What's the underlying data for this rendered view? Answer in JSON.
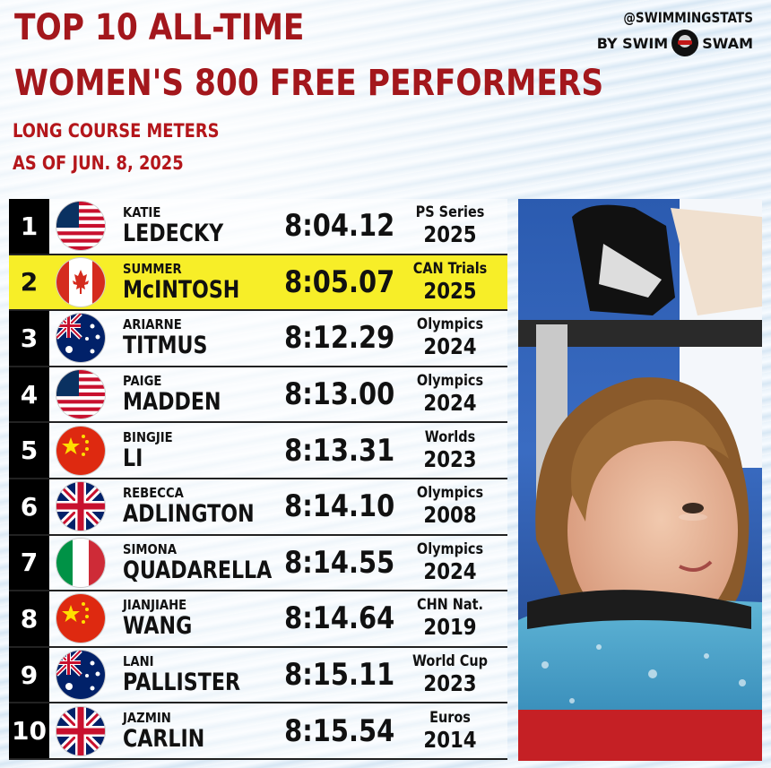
{
  "header": {
    "title_line1": "TOP 10 ALL-TIME",
    "title_line2": "WOMEN'S 800 FREE PERFORMERS",
    "subtitle_line1": "LONG COURSE METERS",
    "subtitle_line2": "AS OF JUN. 8, 2025"
  },
  "brand": {
    "handle": "@SWIMMINGSTATS",
    "by": "BY SWIM",
    "swam": "SWAM",
    "icon": "swimswam-logo-icon"
  },
  "colors": {
    "title_red": "#a3171c",
    "highlight_yellow": "#f7ee28",
    "rank_black": "#000000"
  },
  "rows": [
    {
      "rank": "1",
      "first": "KATIE",
      "last": "LEDECKY",
      "time": "8:04.12",
      "meet": "PS Series",
      "year": "2025",
      "flag": "usa",
      "highlight": false
    },
    {
      "rank": "2",
      "first": "SUMMER",
      "last": "McINTOSH",
      "time": "8:05.07",
      "meet": "CAN Trials",
      "year": "2025",
      "flag": "canada",
      "highlight": true
    },
    {
      "rank": "3",
      "first": "ARIARNE",
      "last": "TITMUS",
      "time": "8:12.29",
      "meet": "Olympics",
      "year": "2024",
      "flag": "australia",
      "highlight": false
    },
    {
      "rank": "4",
      "first": "PAIGE",
      "last": "MADDEN",
      "time": "8:13.00",
      "meet": "Olympics",
      "year": "2024",
      "flag": "usa",
      "highlight": false
    },
    {
      "rank": "5",
      "first": "BINGJIE",
      "last": "LI",
      "time": "8:13.31",
      "meet": "Worlds",
      "year": "2023",
      "flag": "china",
      "highlight": false
    },
    {
      "rank": "6",
      "first": "REBECCA",
      "last": "ADLINGTON",
      "time": "8:14.10",
      "meet": "Olympics",
      "year": "2008",
      "flag": "uk",
      "highlight": false
    },
    {
      "rank": "7",
      "first": "SIMONA",
      "last": "QUADARELLA",
      "time": "8:14.55",
      "meet": "Olympics",
      "year": "2024",
      "flag": "italy",
      "highlight": false
    },
    {
      "rank": "8",
      "first": "JIANJIAHE",
      "last": "WANG",
      "time": "8:14.64",
      "meet": "CHN Nat.",
      "year": "2019",
      "flag": "china",
      "highlight": false
    },
    {
      "rank": "9",
      "first": "LANI",
      "last": "PALLISTER",
      "time": "8:15.11",
      "meet": "World Cup",
      "year": "2023",
      "flag": "australia",
      "highlight": false
    },
    {
      "rank": "10",
      "first": "JAZMIN",
      "last": "CARLIN",
      "time": "8:15.54",
      "meet": "Euros",
      "year": "2014",
      "flag": "uk",
      "highlight": false
    }
  ]
}
